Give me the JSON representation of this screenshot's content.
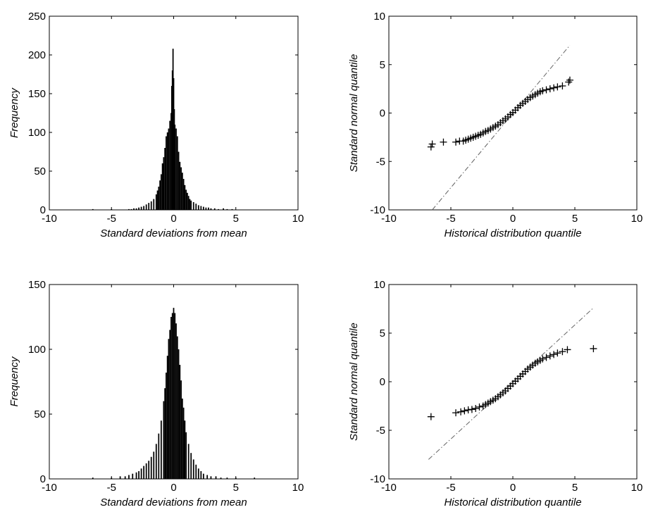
{
  "chart_data": [
    {
      "type": "bar",
      "xlabel": "Standard deviations from mean",
      "ylabel": "Frequency",
      "xlim": [
        -10,
        10
      ],
      "ylim": [
        0,
        250
      ],
      "xticks": [
        -10,
        -5,
        0,
        5,
        10
      ],
      "yticks": [
        0,
        50,
        100,
        150,
        200,
        250
      ],
      "grid": false,
      "bin_width": 0.1,
      "x": [
        -6.5,
        -5.0,
        -3.6,
        -3.4,
        -3.2,
        -3.0,
        -2.8,
        -2.6,
        -2.4,
        -2.2,
        -2.0,
        -1.8,
        -1.6,
        -1.4,
        -1.3,
        -1.2,
        -1.1,
        -1.0,
        -0.9,
        -0.8,
        -0.7,
        -0.6,
        -0.5,
        -0.4,
        -0.3,
        -0.2,
        -0.15,
        -0.1,
        -0.05,
        0.0,
        0.05,
        0.1,
        0.2,
        0.3,
        0.4,
        0.5,
        0.6,
        0.7,
        0.8,
        0.9,
        1.0,
        1.1,
        1.2,
        1.3,
        1.4,
        1.6,
        1.8,
        2.0,
        2.2,
        2.4,
        2.6,
        2.8,
        3.0,
        3.3,
        3.6,
        4.0,
        4.3,
        4.7
      ],
      "values": [
        1,
        1,
        1,
        1,
        2,
        2,
        3,
        4,
        5,
        7,
        9,
        11,
        14,
        20,
        25,
        30,
        38,
        46,
        60,
        68,
        80,
        95,
        100,
        105,
        115,
        125,
        160,
        180,
        208,
        170,
        130,
        110,
        105,
        95,
        75,
        62,
        55,
        48,
        40,
        32,
        26,
        22,
        18,
        14,
        12,
        10,
        8,
        6,
        5,
        4,
        3,
        3,
        2,
        2,
        1,
        2,
        1,
        1
      ]
    },
    {
      "type": "scatter",
      "xlabel": "Historical distribution quantile",
      "ylabel": "Standard normal quantile",
      "xlim": [
        -10,
        10
      ],
      "ylim": [
        -10,
        10
      ],
      "xticks": [
        -10,
        -5,
        0,
        5,
        10
      ],
      "yticks": [
        -10,
        -5,
        0,
        5,
        10
      ],
      "grid": false,
      "marker": "+",
      "reference_line": {
        "style": "dash-dot",
        "from": [
          -6.5,
          -10
        ],
        "to": [
          4.6,
          7
        ]
      },
      "x": [
        -6.6,
        -6.5,
        -5.6,
        -4.6,
        -4.3,
        -4.0,
        -3.8,
        -3.6,
        -3.4,
        -3.2,
        -3.0,
        -2.8,
        -2.6,
        -2.4,
        -2.2,
        -2.0,
        -1.8,
        -1.6,
        -1.4,
        -1.2,
        -1.0,
        -0.8,
        -0.6,
        -0.4,
        -0.2,
        0.0,
        0.2,
        0.4,
        0.6,
        0.8,
        1.0,
        1.2,
        1.4,
        1.6,
        1.8,
        2.0,
        2.2,
        2.4,
        2.7,
        3.0,
        3.3,
        3.6,
        4.0,
        4.5,
        4.6
      ],
      "y": [
        -3.5,
        -3.2,
        -3.0,
        -3.0,
        -2.9,
        -2.9,
        -2.8,
        -2.7,
        -2.6,
        -2.5,
        -2.4,
        -2.3,
        -2.2,
        -2.05,
        -1.9,
        -1.8,
        -1.65,
        -1.5,
        -1.35,
        -1.2,
        -1.0,
        -0.8,
        -0.6,
        -0.4,
        -0.15,
        0.05,
        0.3,
        0.55,
        0.8,
        1.0,
        1.2,
        1.4,
        1.6,
        1.75,
        1.9,
        2.05,
        2.2,
        2.3,
        2.4,
        2.5,
        2.6,
        2.7,
        2.8,
        3.2,
        3.4
      ]
    },
    {
      "type": "bar",
      "xlabel": "Standard deviations from mean",
      "ylabel": "Frequency",
      "xlim": [
        -10,
        10
      ],
      "ylim": [
        0,
        150
      ],
      "xticks": [
        -10,
        -5,
        0,
        5,
        10
      ],
      "yticks": [
        0,
        50,
        100,
        150
      ],
      "grid": false,
      "bin_width": 0.1,
      "x": [
        -6.5,
        -5.0,
        -4.3,
        -3.9,
        -3.6,
        -3.3,
        -3.0,
        -2.8,
        -2.6,
        -2.4,
        -2.2,
        -2.0,
        -1.8,
        -1.6,
        -1.4,
        -1.2,
        -1.0,
        -0.8,
        -0.7,
        -0.6,
        -0.5,
        -0.4,
        -0.3,
        -0.2,
        -0.1,
        0.0,
        0.1,
        0.2,
        0.3,
        0.4,
        0.5,
        0.6,
        0.7,
        0.8,
        0.9,
        1.0,
        1.2,
        1.4,
        1.6,
        1.8,
        2.0,
        2.2,
        2.4,
        2.7,
        3.0,
        3.4,
        3.8,
        4.3,
        5.0,
        6.5
      ],
      "values": [
        1,
        1,
        2,
        2,
        3,
        4,
        5,
        6,
        8,
        10,
        12,
        14,
        17,
        21,
        27,
        35,
        45,
        60,
        70,
        82,
        95,
        108,
        115,
        125,
        128,
        132,
        128,
        120,
        110,
        100,
        88,
        76,
        62,
        55,
        45,
        36,
        27,
        20,
        15,
        11,
        8,
        6,
        4,
        3,
        2,
        2,
        1,
        1,
        1,
        1
      ]
    },
    {
      "type": "scatter",
      "xlabel": "Historical distribution quantile",
      "ylabel": "Standard normal quantile",
      "xlim": [
        -10,
        10
      ],
      "ylim": [
        -10,
        10
      ],
      "xticks": [
        -10,
        -5,
        0,
        5,
        10
      ],
      "yticks": [
        -10,
        -5,
        0,
        5,
        10
      ],
      "grid": false,
      "marker": "+",
      "reference_line": {
        "style": "dash-dot",
        "from": [
          -6.8,
          -8
        ],
        "to": [
          6.5,
          7.6
        ]
      },
      "x": [
        -6.6,
        -4.6,
        -4.2,
        -3.9,
        -3.6,
        -3.3,
        -3.0,
        -2.7,
        -2.4,
        -2.2,
        -2.0,
        -1.8,
        -1.6,
        -1.4,
        -1.2,
        -1.0,
        -0.8,
        -0.6,
        -0.4,
        -0.2,
        0.0,
        0.2,
        0.4,
        0.6,
        0.8,
        1.0,
        1.2,
        1.4,
        1.6,
        1.8,
        2.0,
        2.2,
        2.4,
        2.7,
        3.0,
        3.3,
        3.6,
        4.0,
        4.4,
        6.5
      ],
      "y": [
        -3.6,
        -3.2,
        -3.1,
        -3.0,
        -2.9,
        -2.85,
        -2.75,
        -2.6,
        -2.5,
        -2.35,
        -2.2,
        -2.05,
        -1.9,
        -1.75,
        -1.55,
        -1.35,
        -1.15,
        -0.95,
        -0.7,
        -0.45,
        -0.2,
        0.05,
        0.3,
        0.55,
        0.8,
        1.05,
        1.3,
        1.5,
        1.7,
        1.9,
        2.05,
        2.2,
        2.35,
        2.5,
        2.65,
        2.8,
        2.95,
        3.1,
        3.3,
        3.4
      ]
    }
  ]
}
